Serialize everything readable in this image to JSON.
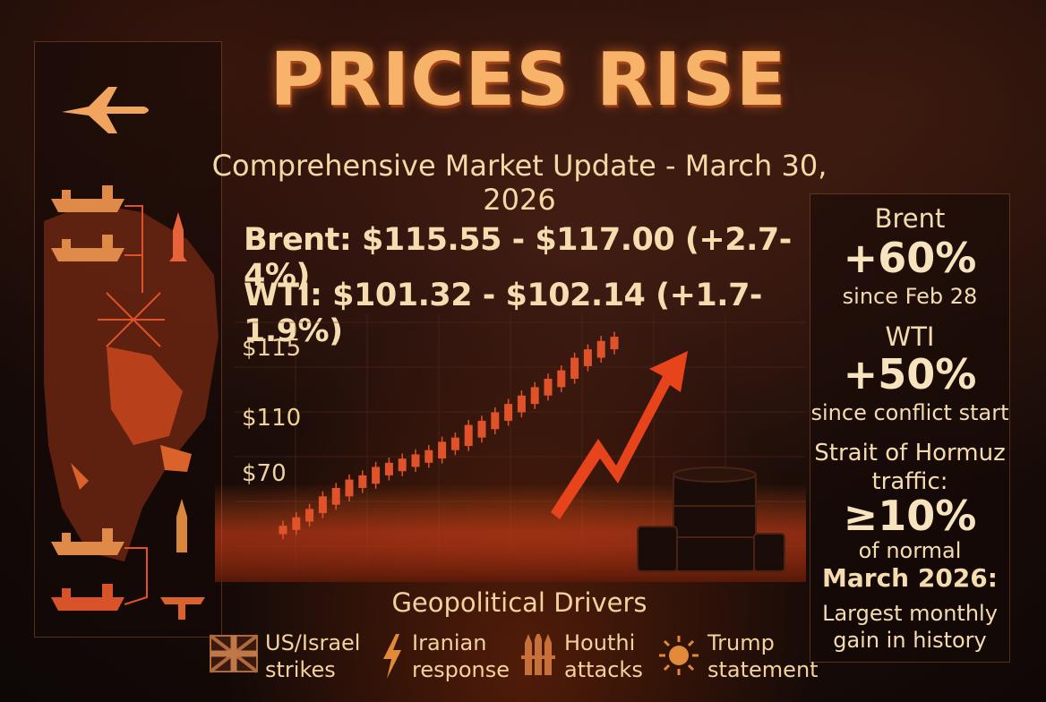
{
  "title": "PRICES RISE",
  "subtitle": "Comprehensive Market Update - March 30, 2026",
  "prices": {
    "brent": "Brent: $115.55 - $117.00 (+2.7-4%)",
    "wti": "WTI: $101.32 - $102.14 (+1.7-1.9%)"
  },
  "chart_data": {
    "type": "candlestick",
    "title": "",
    "ytick_labels": [
      "$115",
      "$110",
      "$70"
    ],
    "trend": "rising",
    "candles": [
      {
        "o": 70,
        "c": 72
      },
      {
        "o": 71,
        "c": 74
      },
      {
        "o": 73,
        "c": 76
      },
      {
        "o": 75,
        "c": 79
      },
      {
        "o": 77,
        "c": 81
      },
      {
        "o": 79,
        "c": 83
      },
      {
        "o": 81,
        "c": 84
      },
      {
        "o": 82,
        "c": 86
      },
      {
        "o": 84,
        "c": 87
      },
      {
        "o": 85,
        "c": 88
      },
      {
        "o": 86,
        "c": 89
      },
      {
        "o": 87,
        "c": 90
      },
      {
        "o": 88,
        "c": 92
      },
      {
        "o": 90,
        "c": 93
      },
      {
        "o": 91,
        "c": 96
      },
      {
        "o": 93,
        "c": 97
      },
      {
        "o": 95,
        "c": 99
      },
      {
        "o": 97,
        "c": 101
      },
      {
        "o": 99,
        "c": 103
      },
      {
        "o": 101,
        "c": 105
      },
      {
        "o": 103,
        "c": 107
      },
      {
        "o": 105,
        "c": 109
      },
      {
        "o": 107,
        "c": 112
      },
      {
        "o": 110,
        "c": 114
      },
      {
        "o": 112,
        "c": 116
      },
      {
        "o": 114,
        "c": 117
      }
    ],
    "colors": {
      "candle": "#e0532a",
      "arrow": "#e8441c"
    }
  },
  "stats": {
    "brent_label": "Brent",
    "brent_value": "+60%",
    "brent_note": "since Feb 28",
    "wti_label": "WTI",
    "wti_value": "+50%",
    "wti_note": "since conflict start",
    "hormuz_label_1": "Strait of Hormuz",
    "hormuz_label_2": "traffic:",
    "hormuz_value": "≥10%",
    "hormuz_note": "of normal",
    "march_label": "March 2026:",
    "march_note_1": "Largest monthly",
    "march_note_2": "gain in history"
  },
  "drivers": {
    "title": "Geopolitical Drivers",
    "items": [
      {
        "icon": "flag-icon",
        "line1": "US/Israel",
        "line2": "strikes"
      },
      {
        "icon": "lightning-icon",
        "line1": "Iranian",
        "line2": "response"
      },
      {
        "icon": "missile-cluster-icon",
        "line1": "Houthi",
        "line2": "attacks"
      },
      {
        "icon": "sun-burst-icon",
        "line1": "Trump",
        "line2": "statement"
      }
    ]
  },
  "colors": {
    "accent": "#f7b36a",
    "fire": "#e8441c",
    "text": "#f2d39a"
  }
}
